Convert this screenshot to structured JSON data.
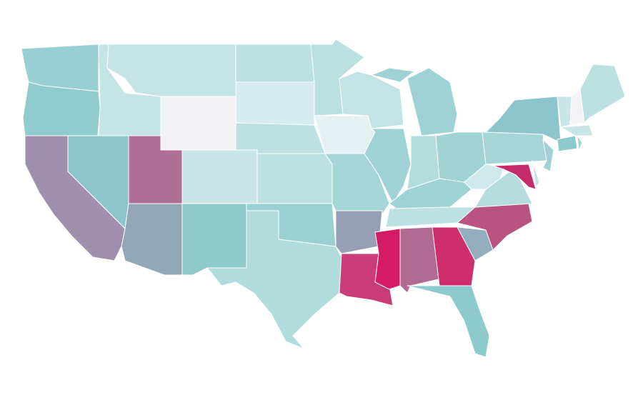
{
  "map": {
    "regions": [
      {
        "fill": "#98cfd3"
      },
      {
        "fill": "#90cccd"
      },
      {
        "fill": "#a08fac"
      },
      {
        "fill": "#8dc5cb"
      },
      {
        "fill": "#c5e4e6"
      },
      {
        "fill": "#c3e3e4"
      },
      {
        "fill": "#f2f2f4"
      },
      {
        "fill": "#ad6f96"
      },
      {
        "fill": "#93a8b7"
      },
      {
        "fill": "#c8e6e8"
      },
      {
        "fill": "#8fcaca"
      },
      {
        "fill": "#bde0e2"
      },
      {
        "fill": "#d6ecee"
      },
      {
        "fill": "#bce0e2"
      },
      {
        "fill": "#bde0e2"
      },
      {
        "fill": "#99d0d2"
      },
      {
        "fill": "#b1dcde"
      },
      {
        "fill": "#bae0e2"
      },
      {
        "fill": "#e5f2f3"
      },
      {
        "fill": "#a6d5d8"
      },
      {
        "fill": "#969fb3"
      },
      {
        "fill": "#c83d78"
      },
      {
        "fill": "#c3e3e5"
      },
      {
        "fill": "#9fd2d5"
      },
      {
        "fill": "#9fd2d5"
      },
      {
        "fill": "#9fd2d5"
      },
      {
        "fill": "#b2dcde"
      },
      {
        "fill": "#a1d3d5"
      },
      {
        "fill": "#9fd2d5"
      },
      {
        "fill": "#bde0e3"
      },
      {
        "fill": "#d31c64"
      },
      {
        "fill": "#b06a93"
      },
      {
        "fill": "#cf2e6d"
      },
      {
        "fill": "#8ccacc"
      },
      {
        "fill": "#93afbd"
      },
      {
        "fill": "#b9537f"
      },
      {
        "fill": "#b6dcdf"
      },
      {
        "fill": "#cfe8ea"
      },
      {
        "fill": "#a6d5d8"
      },
      {
        "fill": "#8cc5cb"
      },
      {
        "fill": "#c52b69"
      },
      {
        "fill": "#c4e3e5"
      },
      {
        "fill": "#a0d2d5"
      },
      {
        "fill": "#8ccacc"
      },
      {
        "fill": "#c8e6e8"
      },
      {
        "fill": "#c8e6e8"
      },
      {
        "fill": "#f3f3f5"
      },
      {
        "fill": "#bce0e2"
      },
      {
        "fill": "#9fd2d5"
      }
    ]
  }
}
